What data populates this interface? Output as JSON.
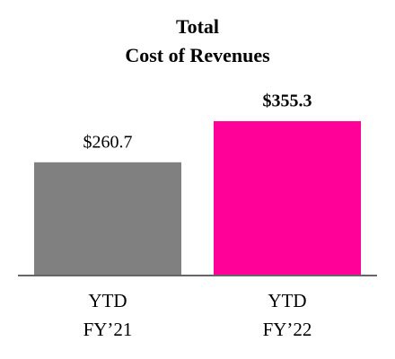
{
  "chart_data": {
    "type": "bar",
    "title": [
      "Total",
      "Cost of Revenues"
    ],
    "categories": [
      [
        "YTD",
        "FY’21"
      ],
      [
        "YTD",
        "FY’22"
      ]
    ],
    "values": [
      260.7,
      355.3
    ],
    "value_labels": [
      "$260.7",
      "$355.3"
    ],
    "colors": [
      "#808080",
      "#ff0099"
    ]
  }
}
